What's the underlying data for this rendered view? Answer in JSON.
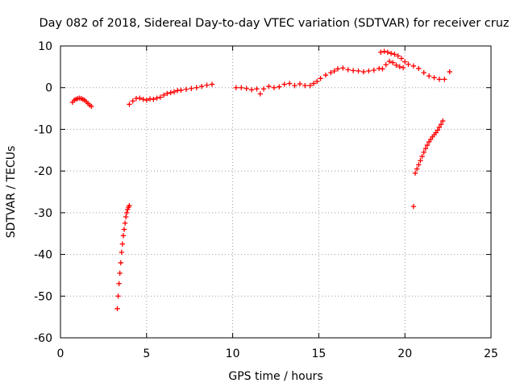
{
  "chart_data": {
    "type": "scatter",
    "title": "Day 082 of 2018, Sidereal Day-to-day VTEC variation (SDTVAR) for receiver cruz",
    "xlabel": "GPS time / hours",
    "ylabel": "SDTVAR / TECUs",
    "xlim": [
      0,
      25
    ],
    "ylim": [
      -60,
      10
    ],
    "xticks": [
      0,
      5,
      10,
      15,
      20,
      25
    ],
    "xtick_labels": [
      "0",
      "5",
      "10",
      "15",
      "20",
      "25"
    ],
    "yticks": [
      10,
      0,
      -10,
      -20,
      -30,
      -40,
      -50,
      -60
    ],
    "ytick_labels": [
      "10",
      "0",
      "-10",
      "-20",
      "-30",
      "-40",
      "-50",
      "-60"
    ],
    "grid": true,
    "marker": "+",
    "color": "#ff0000",
    "series": [
      {
        "name": "SDTVAR",
        "x": [
          0.7,
          0.8,
          0.9,
          1.0,
          1.1,
          1.2,
          1.3,
          1.4,
          1.5,
          1.6,
          1.7,
          1.8,
          3.3,
          3.35,
          3.4,
          3.45,
          3.5,
          3.55,
          3.6,
          3.65,
          3.7,
          3.75,
          3.8,
          3.85,
          3.9,
          3.95,
          4.0,
          4.0,
          4.2,
          4.4,
          4.6,
          4.8,
          5.0,
          5.2,
          5.4,
          5.6,
          5.8,
          6.0,
          6.2,
          6.4,
          6.6,
          6.8,
          7.0,
          7.3,
          7.6,
          7.9,
          8.2,
          8.5,
          8.8,
          10.2,
          10.5,
          10.8,
          11.1,
          11.4,
          11.6,
          11.8,
          12.1,
          12.4,
          12.7,
          13.0,
          13.3,
          13.6,
          13.9,
          14.2,
          14.5,
          14.7,
          14.9,
          15.1,
          15.4,
          15.7,
          15.9,
          16.1,
          16.4,
          16.7,
          17.0,
          17.3,
          17.6,
          17.9,
          18.2,
          18.5,
          18.6,
          18.8,
          19.0,
          19.2,
          19.4,
          19.6,
          19.8,
          20.0,
          20.2,
          20.5,
          20.8,
          21.1,
          21.4,
          21.7,
          22.0,
          22.3,
          22.6,
          18.7,
          18.9,
          19.1,
          19.3,
          19.5,
          19.7,
          19.9,
          20.5,
          20.6,
          20.7,
          20.8,
          20.9,
          21.0,
          21.1,
          21.2,
          21.3,
          21.4,
          21.5,
          21.6,
          21.7,
          21.8,
          21.9,
          22.0,
          22.1,
          22.2
        ],
        "y": [
          -3.5,
          -3.0,
          -2.8,
          -2.6,
          -2.5,
          -2.6,
          -2.8,
          -3.0,
          -3.4,
          -3.8,
          -4.2,
          -4.5,
          -53.0,
          -50.0,
          -47.0,
          -44.5,
          -42.0,
          -39.5,
          -37.5,
          -35.5,
          -34.0,
          -32.5,
          -31.0,
          -30.0,
          -29.2,
          -28.7,
          -28.3,
          -4.0,
          -3.2,
          -2.6,
          -2.5,
          -2.8,
          -3.0,
          -2.7,
          -2.8,
          -2.5,
          -2.3,
          -1.8,
          -1.4,
          -1.2,
          -1.0,
          -0.7,
          -0.6,
          -0.4,
          -0.2,
          0.0,
          0.3,
          0.6,
          0.8,
          0.0,
          0.0,
          -0.2,
          -0.5,
          -0.3,
          -1.5,
          -0.3,
          0.3,
          0.0,
          0.2,
          0.8,
          1.0,
          0.5,
          0.9,
          0.5,
          0.5,
          1.0,
          1.5,
          2.2,
          3.0,
          3.6,
          4.0,
          4.5,
          4.7,
          4.3,
          4.1,
          4.0,
          3.8,
          4.0,
          4.2,
          4.6,
          8.5,
          8.7,
          8.5,
          8.2,
          8.0,
          7.6,
          7.0,
          6.2,
          5.6,
          5.2,
          4.6,
          3.6,
          2.8,
          2.4,
          2.0,
          2.0,
          3.8,
          4.5,
          5.5,
          6.3,
          6.0,
          5.4,
          5.0,
          4.8,
          -28.5,
          -20.5,
          -19.5,
          -18.5,
          -17.5,
          -16.5,
          -15.5,
          -14.6,
          -13.8,
          -13.0,
          -12.4,
          -11.8,
          -11.3,
          -10.8,
          -10.2,
          -9.5,
          -8.8,
          -8.0
        ]
      }
    ]
  }
}
